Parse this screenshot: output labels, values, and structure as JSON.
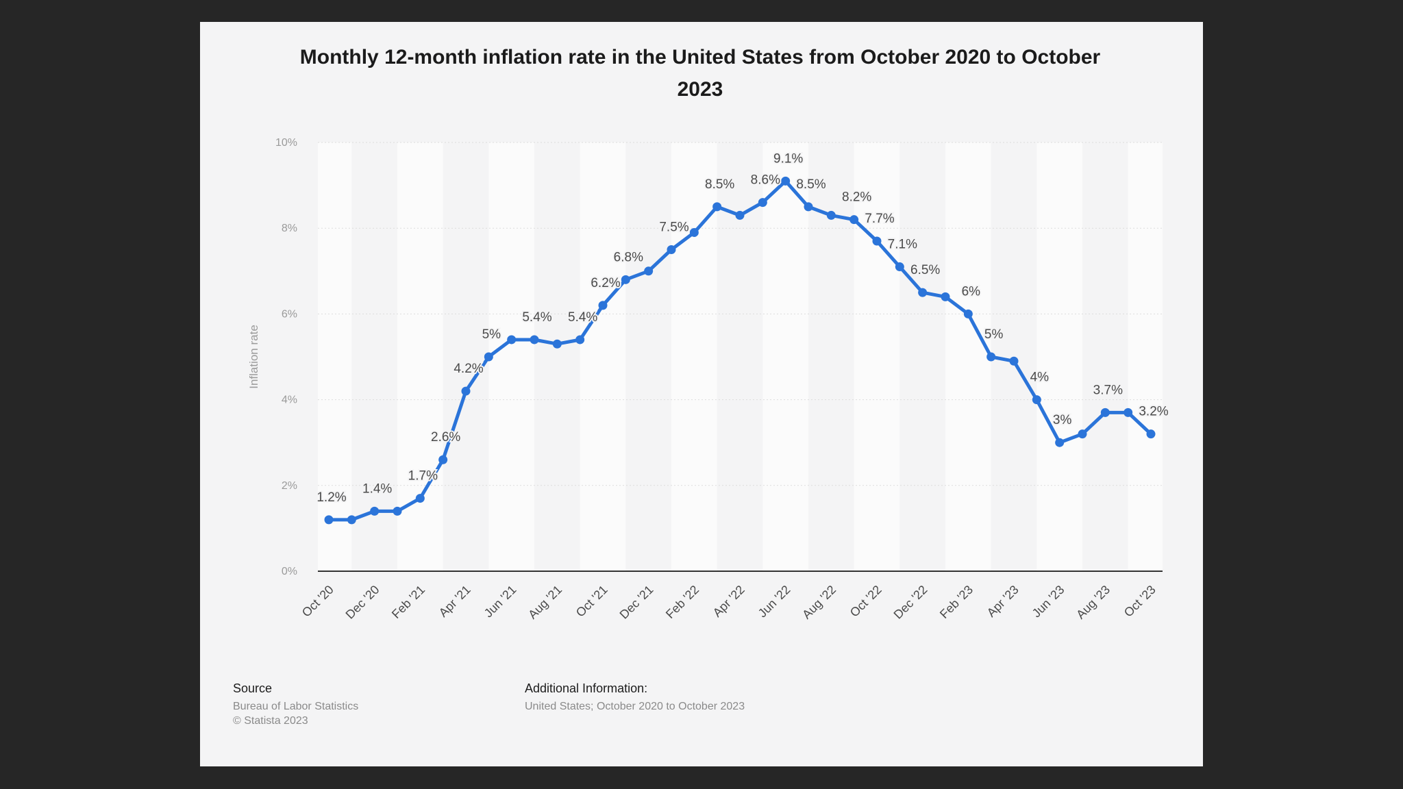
{
  "chart_data": {
    "type": "line",
    "title": "Monthly 12-month inflation rate in the United States from October 2020 to October 2023",
    "ylabel": "Inflation rate",
    "xlabel": "",
    "ylim": [
      0,
      10
    ],
    "yticks": [
      0,
      2,
      4,
      6,
      8,
      10
    ],
    "ytick_labels": [
      "0%",
      "2%",
      "4%",
      "6%",
      "8%",
      "10%"
    ],
    "tick_labels": [
      "Oct '20",
      "Dec '20",
      "Feb '21",
      "Apr '21",
      "Jun '21",
      "Aug '21",
      "Oct '21",
      "Dec '21",
      "Feb '22",
      "Apr '22",
      "Jun '22",
      "Aug '22",
      "Oct '22",
      "Dec '22",
      "Feb '23",
      "Apr '23",
      "Jun '23",
      "Aug '23",
      "Oct '23"
    ],
    "categories": [
      "Oct '20",
      "Nov '20",
      "Dec '20",
      "Jan '21",
      "Feb '21",
      "Mar '21",
      "Apr '21",
      "May '21",
      "Jun '21",
      "Jul '21",
      "Aug '21",
      "Sep '21",
      "Oct '21",
      "Nov '21",
      "Dec '21",
      "Jan '22",
      "Feb '22",
      "Mar '22",
      "Apr '22",
      "May '22",
      "Jun '22",
      "Jul '22",
      "Aug '22",
      "Sep '22",
      "Oct '22",
      "Nov '22",
      "Dec '22",
      "Jan '23",
      "Feb '23",
      "Mar '23",
      "Apr '23",
      "May '23",
      "Jun '23",
      "Jul '23",
      "Aug '23",
      "Sep '23",
      "Oct '23"
    ],
    "series": [
      {
        "name": "Inflation rate",
        "color": "#2b74d9",
        "values": [
          1.2,
          1.2,
          1.4,
          1.4,
          1.7,
          2.6,
          4.2,
          5.0,
          5.4,
          5.4,
          5.3,
          5.4,
          6.2,
          6.8,
          7.0,
          7.5,
          7.9,
          8.5,
          8.3,
          8.6,
          9.1,
          8.5,
          8.3,
          8.2,
          7.7,
          7.1,
          6.5,
          6.4,
          6.0,
          5.0,
          4.9,
          4.0,
          3.0,
          3.2,
          3.7,
          3.7,
          3.2
        ]
      }
    ],
    "data_labels": [
      {
        "index": 0,
        "text": "1.2%"
      },
      {
        "index": 2,
        "text": "1.4%"
      },
      {
        "index": 4,
        "text": "1.7%"
      },
      {
        "index": 5,
        "text": "2.6%"
      },
      {
        "index": 6,
        "text": "4.2%"
      },
      {
        "index": 7,
        "text": "5%"
      },
      {
        "index": 9,
        "text": "5.4%"
      },
      {
        "index": 11,
        "text": "5.4%"
      },
      {
        "index": 12,
        "text": "6.2%"
      },
      {
        "index": 13,
        "text": "6.8%"
      },
      {
        "index": 15,
        "text": "7.5%"
      },
      {
        "index": 17,
        "text": "8.5%"
      },
      {
        "index": 19,
        "text": "8.6%"
      },
      {
        "index": 20,
        "text": "9.1%"
      },
      {
        "index": 21,
        "text": "8.5%"
      },
      {
        "index": 23,
        "text": "8.2%"
      },
      {
        "index": 24,
        "text": "7.7%"
      },
      {
        "index": 25,
        "text": "7.1%"
      },
      {
        "index": 26,
        "text": "6.5%"
      },
      {
        "index": 28,
        "text": "6%"
      },
      {
        "index": 29,
        "text": "5%"
      },
      {
        "index": 31,
        "text": "4%"
      },
      {
        "index": 32,
        "text": "3%"
      },
      {
        "index": 34,
        "text": "3.7%"
      },
      {
        "index": 36,
        "text": "3.2%"
      }
    ],
    "grid": true,
    "legend": "none"
  },
  "footer": {
    "source_heading": "Source",
    "source_text": "Bureau of Labor Statistics",
    "copyright": "© Statista 2023",
    "info_heading": "Additional Information:",
    "info_text": "United States; October 2020 to October 2023"
  }
}
